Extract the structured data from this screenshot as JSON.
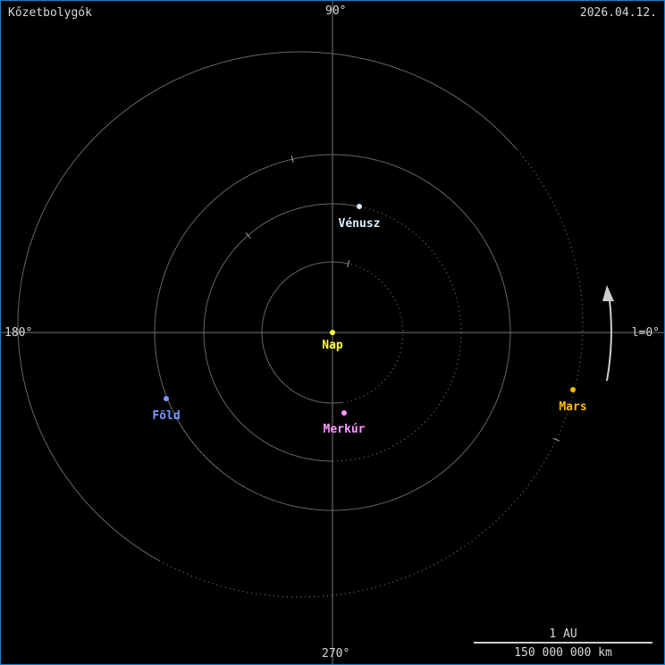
{
  "title": "Kőzetbolygók",
  "date": "2026.04.12.",
  "axis_labels": {
    "top": "90°",
    "left": "180°",
    "bottom": "270°",
    "right": "l=0°"
  },
  "scale": {
    "top": "1 AU",
    "bottom": "150 000 000 km"
  },
  "sun": {
    "label": "Nap",
    "color": "#ffff40"
  },
  "planets": [
    {
      "label": "Merkúr",
      "color": "#ff99ff"
    },
    {
      "label": "Vénusz",
      "color": "#ddeeff"
    },
    {
      "label": "Föld",
      "color": "#7799ff"
    },
    {
      "label": "Mars",
      "color": "#ffbb00"
    }
  ]
}
